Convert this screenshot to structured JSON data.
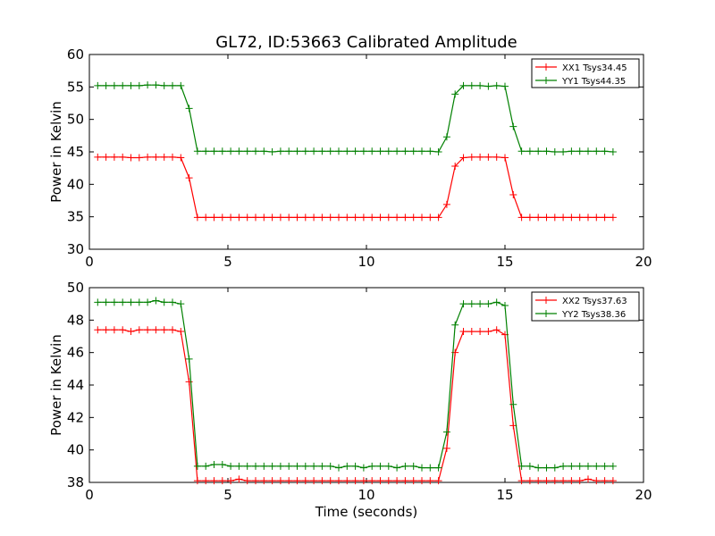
{
  "figure": {
    "title": "GL72, ID:53663 Calibrated Amplitude",
    "xlabel": "Time (seconds)"
  },
  "chart_data": [
    {
      "type": "line",
      "title": "GL72, ID:53663 Calibrated Amplitude",
      "xlabel": "",
      "ylabel": "Power in Kelvin",
      "xlim": [
        0,
        20
      ],
      "ylim": [
        30,
        60
      ],
      "xticks": [
        "0",
        "5",
        "10",
        "15",
        "20"
      ],
      "yticks": [
        "30",
        "35",
        "40",
        "45",
        "50",
        "55",
        "60"
      ],
      "legend_position": "top-right",
      "grid": false,
      "series": [
        {
          "name": "XX1 Tsys34.45",
          "color": "#ff0000",
          "x": [
            0.3,
            0.6,
            0.9,
            1.2,
            1.5,
            1.8,
            2.1,
            2.4,
            2.7,
            3.0,
            3.3,
            3.6,
            3.9,
            4.2,
            4.5,
            4.8,
            5.1,
            5.4,
            5.7,
            6.0,
            6.3,
            6.6,
            6.9,
            7.2,
            7.5,
            7.8,
            8.1,
            8.4,
            8.7,
            9.0,
            9.3,
            9.6,
            9.9,
            10.2,
            10.5,
            10.8,
            11.1,
            11.4,
            11.7,
            12.0,
            12.3,
            12.6,
            12.9,
            13.2,
            13.5,
            13.8,
            14.1,
            14.4,
            14.7,
            15.0,
            15.3,
            15.6,
            15.9,
            16.2,
            16.5,
            16.8,
            17.1,
            17.4,
            17.7,
            18.0,
            18.3,
            18.6,
            18.9
          ],
          "y": [
            44.2,
            44.2,
            44.2,
            44.2,
            44.1,
            44.1,
            44.2,
            44.2,
            44.2,
            44.2,
            44.1,
            41.0,
            34.9,
            34.9,
            34.9,
            34.9,
            34.9,
            34.9,
            34.9,
            34.9,
            34.9,
            34.9,
            34.9,
            34.9,
            34.9,
            34.9,
            34.9,
            34.9,
            34.9,
            34.9,
            34.9,
            34.9,
            34.9,
            34.9,
            34.9,
            34.9,
            34.9,
            34.9,
            34.9,
            34.9,
            34.9,
            34.9,
            36.9,
            42.8,
            44.1,
            44.2,
            44.2,
            44.2,
            44.2,
            44.1,
            38.4,
            34.9,
            34.9,
            34.9,
            34.9,
            34.9,
            34.9,
            34.9,
            34.9,
            34.9,
            34.9,
            34.9,
            34.9
          ]
        },
        {
          "name": "YY1 Tsys44.35",
          "color": "#008000",
          "x": [
            0.3,
            0.6,
            0.9,
            1.2,
            1.5,
            1.8,
            2.1,
            2.4,
            2.7,
            3.0,
            3.3,
            3.6,
            3.9,
            4.2,
            4.5,
            4.8,
            5.1,
            5.4,
            5.7,
            6.0,
            6.3,
            6.6,
            6.9,
            7.2,
            7.5,
            7.8,
            8.1,
            8.4,
            8.7,
            9.0,
            9.3,
            9.6,
            9.9,
            10.2,
            10.5,
            10.8,
            11.1,
            11.4,
            11.7,
            12.0,
            12.3,
            12.6,
            12.9,
            13.2,
            13.5,
            13.8,
            14.1,
            14.4,
            14.7,
            15.0,
            15.3,
            15.6,
            15.9,
            16.2,
            16.5,
            16.8,
            17.1,
            17.4,
            17.7,
            18.0,
            18.3,
            18.6,
            18.9
          ],
          "y": [
            55.2,
            55.2,
            55.2,
            55.2,
            55.2,
            55.2,
            55.3,
            55.3,
            55.2,
            55.2,
            55.2,
            51.7,
            45.1,
            45.1,
            45.1,
            45.1,
            45.1,
            45.1,
            45.1,
            45.1,
            45.1,
            45.0,
            45.1,
            45.1,
            45.1,
            45.1,
            45.1,
            45.1,
            45.1,
            45.1,
            45.1,
            45.1,
            45.1,
            45.1,
            45.1,
            45.1,
            45.1,
            45.1,
            45.1,
            45.1,
            45.1,
            45.0,
            47.3,
            53.9,
            55.2,
            55.2,
            55.2,
            55.1,
            55.2,
            55.1,
            48.9,
            45.1,
            45.1,
            45.1,
            45.1,
            45.0,
            45.0,
            45.1,
            45.1,
            45.1,
            45.1,
            45.1,
            45.0
          ]
        }
      ]
    },
    {
      "type": "line",
      "title": "",
      "xlabel": "Time (seconds)",
      "ylabel": "Power in Kelvin",
      "xlim": [
        0,
        20
      ],
      "ylim": [
        38,
        50
      ],
      "xticks": [
        "0",
        "5",
        "10",
        "15",
        "20"
      ],
      "yticks": [
        "38",
        "40",
        "42",
        "44",
        "46",
        "48",
        "50"
      ],
      "legend_position": "top-right",
      "grid": false,
      "series": [
        {
          "name": "XX2 Tsys37.63",
          "color": "#ff0000",
          "x": [
            0.3,
            0.6,
            0.9,
            1.2,
            1.5,
            1.8,
            2.1,
            2.4,
            2.7,
            3.0,
            3.3,
            3.6,
            3.9,
            4.2,
            4.5,
            4.8,
            5.1,
            5.4,
            5.7,
            6.0,
            6.3,
            6.6,
            6.9,
            7.2,
            7.5,
            7.8,
            8.1,
            8.4,
            8.7,
            9.0,
            9.3,
            9.6,
            9.9,
            10.2,
            10.5,
            10.8,
            11.1,
            11.4,
            11.7,
            12.0,
            12.3,
            12.6,
            12.9,
            13.2,
            13.5,
            13.8,
            14.1,
            14.4,
            14.7,
            15.0,
            15.3,
            15.6,
            15.9,
            16.2,
            16.5,
            16.8,
            17.1,
            17.4,
            17.7,
            18.0,
            18.3,
            18.6,
            18.9
          ],
          "y": [
            47.4,
            47.4,
            47.4,
            47.4,
            47.3,
            47.4,
            47.4,
            47.4,
            47.4,
            47.4,
            47.3,
            44.2,
            38.1,
            38.1,
            38.1,
            38.1,
            38.1,
            38.2,
            38.1,
            38.1,
            38.1,
            38.1,
            38.1,
            38.1,
            38.1,
            38.1,
            38.1,
            38.1,
            38.1,
            38.1,
            38.1,
            38.1,
            38.1,
            38.1,
            38.1,
            38.1,
            38.1,
            38.1,
            38.1,
            38.1,
            38.1,
            38.1,
            40.1,
            46.0,
            47.3,
            47.3,
            47.3,
            47.3,
            47.4,
            47.1,
            41.5,
            38.1,
            38.1,
            38.1,
            38.1,
            38.1,
            38.1,
            38.1,
            38.1,
            38.2,
            38.1,
            38.1,
            38.1
          ]
        },
        {
          "name": "YY2 Tsys38.36",
          "color": "#008000",
          "x": [
            0.3,
            0.6,
            0.9,
            1.2,
            1.5,
            1.8,
            2.1,
            2.4,
            2.7,
            3.0,
            3.3,
            3.6,
            3.9,
            4.2,
            4.5,
            4.8,
            5.1,
            5.4,
            5.7,
            6.0,
            6.3,
            6.6,
            6.9,
            7.2,
            7.5,
            7.8,
            8.1,
            8.4,
            8.7,
            9.0,
            9.3,
            9.6,
            9.9,
            10.2,
            10.5,
            10.8,
            11.1,
            11.4,
            11.7,
            12.0,
            12.3,
            12.6,
            12.9,
            13.2,
            13.5,
            13.8,
            14.1,
            14.4,
            14.7,
            15.0,
            15.3,
            15.6,
            15.9,
            16.2,
            16.5,
            16.8,
            17.1,
            17.4,
            17.7,
            18.0,
            18.3,
            18.6,
            18.9
          ],
          "y": [
            49.1,
            49.1,
            49.1,
            49.1,
            49.1,
            49.1,
            49.1,
            49.2,
            49.1,
            49.1,
            49.0,
            45.6,
            39.0,
            39.0,
            39.1,
            39.1,
            39.0,
            39.0,
            39.0,
            39.0,
            39.0,
            39.0,
            39.0,
            39.0,
            39.0,
            39.0,
            39.0,
            39.0,
            39.0,
            38.9,
            39.0,
            39.0,
            38.9,
            39.0,
            39.0,
            39.0,
            38.9,
            39.0,
            39.0,
            38.9,
            38.9,
            38.9,
            41.1,
            47.7,
            49.0,
            49.0,
            49.0,
            49.0,
            49.1,
            48.9,
            42.8,
            39.0,
            39.0,
            38.9,
            38.9,
            38.9,
            39.0,
            39.0,
            39.0,
            39.0,
            39.0,
            39.0,
            39.0
          ]
        }
      ]
    }
  ]
}
